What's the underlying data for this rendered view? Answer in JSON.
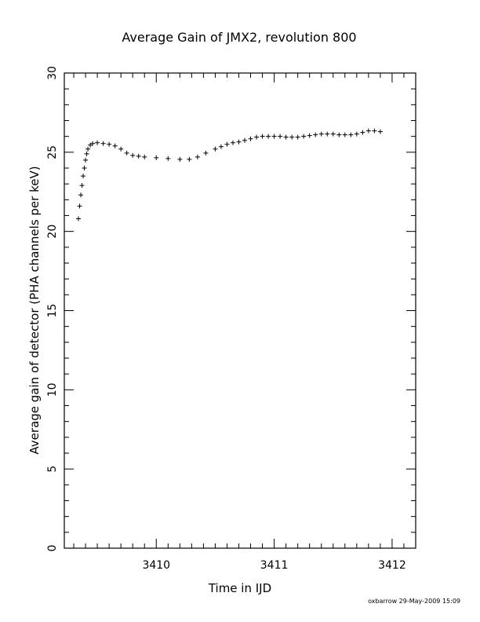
{
  "chart_data": {
    "type": "scatter",
    "title": "Average Gain of JMX2, revolution 800",
    "xlabel": "Time in IJD",
    "ylabel": "Average gain of detector (PHA channels per keV)",
    "xlim": [
      3409.22,
      3412.2
    ],
    "ylim": [
      0,
      30
    ],
    "xticks": [
      3410,
      3411,
      3412
    ],
    "yticks": [
      0,
      5,
      10,
      15,
      20,
      25,
      30
    ],
    "marker": "plus",
    "marker_color": "#000000",
    "grid": false,
    "legend": "none",
    "x": [
      3409.34,
      3409.35,
      3409.36,
      3409.37,
      3409.38,
      3409.39,
      3409.4,
      3409.41,
      3409.42,
      3409.44,
      3409.46,
      3409.5,
      3409.55,
      3409.6,
      3409.65,
      3409.7,
      3409.75,
      3409.8,
      3409.85,
      3409.9,
      3410.0,
      3410.1,
      3410.2,
      3410.28,
      3410.35,
      3410.42,
      3410.5,
      3410.55,
      3410.6,
      3410.65,
      3410.7,
      3410.75,
      3410.8,
      3410.85,
      3410.9,
      3410.95,
      3411.0,
      3411.05,
      3411.1,
      3411.15,
      3411.2,
      3411.25,
      3411.3,
      3411.35,
      3411.4,
      3411.45,
      3411.5,
      3411.55,
      3411.6,
      3411.65,
      3411.7,
      3411.75,
      3411.8,
      3411.85,
      3411.9
    ],
    "y": [
      20.8,
      21.6,
      22.3,
      22.9,
      23.5,
      24.0,
      24.5,
      24.9,
      25.2,
      25.45,
      25.55,
      25.6,
      25.55,
      25.5,
      25.4,
      25.2,
      24.95,
      24.8,
      24.75,
      24.7,
      24.65,
      24.6,
      24.55,
      24.55,
      24.7,
      24.95,
      25.2,
      25.35,
      25.5,
      25.6,
      25.65,
      25.75,
      25.85,
      25.95,
      26.0,
      26.0,
      26.0,
      26.0,
      25.95,
      25.95,
      25.95,
      26.0,
      26.05,
      26.1,
      26.15,
      26.15,
      26.15,
      26.1,
      26.1,
      26.1,
      26.15,
      26.25,
      26.35,
      26.35,
      26.3
    ]
  },
  "footer": "oxbarrow 29-May-2009 15:09"
}
